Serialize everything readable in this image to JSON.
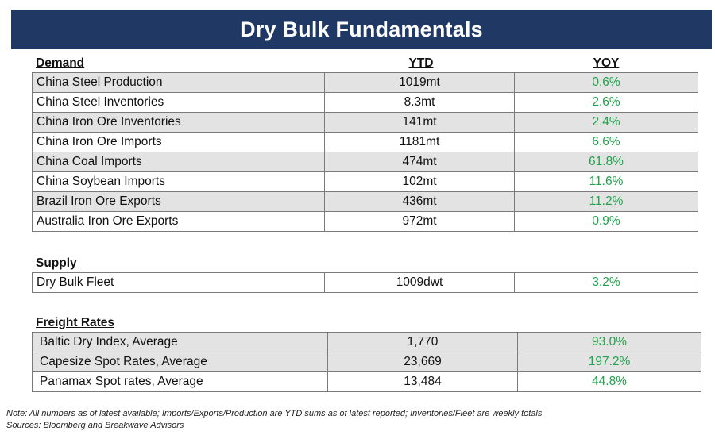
{
  "title": "Dry Bulk Fundamentals",
  "demand": {
    "header": "Demand",
    "col_ytd": "YTD",
    "col_yoy": "YOY",
    "rows": [
      {
        "name": "China Steel Production",
        "ytd": "1019mt",
        "yoy": "0.6%"
      },
      {
        "name": "China Steel Inventories",
        "ytd": "8.3mt",
        "yoy": "2.6%"
      },
      {
        "name": "China Iron Ore Inventories",
        "ytd": "141mt",
        "yoy": "2.4%"
      },
      {
        "name": "China Iron Ore Imports",
        "ytd": "1181mt",
        "yoy": "6.6%"
      },
      {
        "name": "China Coal Imports",
        "ytd": "474mt",
        "yoy": "61.8%"
      },
      {
        "name": "China Soybean Imports",
        "ytd": "102mt",
        "yoy": "11.6%"
      },
      {
        "name": "Brazil Iron Ore Exports",
        "ytd": "436mt",
        "yoy": "11.2%"
      },
      {
        "name": "Australia Iron Ore Exports",
        "ytd": "972mt",
        "yoy": "0.9%"
      }
    ]
  },
  "supply": {
    "header": "Supply",
    "rows": [
      {
        "name": "Dry Bulk Fleet",
        "ytd": "1009dwt",
        "yoy": "3.2%"
      }
    ]
  },
  "freight": {
    "header": "Freight Rates",
    "rows": [
      {
        "name": "Baltic Dry Index, Average",
        "ytd": "1,770",
        "yoy": "93.0%"
      },
      {
        "name": "Capesize Spot Rates, Average",
        "ytd": "23,669",
        "yoy": "197.2%"
      },
      {
        "name": "Panamax Spot rates, Average",
        "ytd": "13,484",
        "yoy": "44.8%"
      }
    ]
  },
  "notes": {
    "line1": "Note:  All numbers as of latest available; Imports/Exports/Production are YTD sums as of latest reported; Inventories/Fleet are weekly totals",
    "line2": "Sources: Bloomberg and Breakwave Advisors"
  },
  "colors": {
    "banner": "#1f3864",
    "positive": "#1fa34a",
    "row_shade": "#e3e3e3"
  }
}
